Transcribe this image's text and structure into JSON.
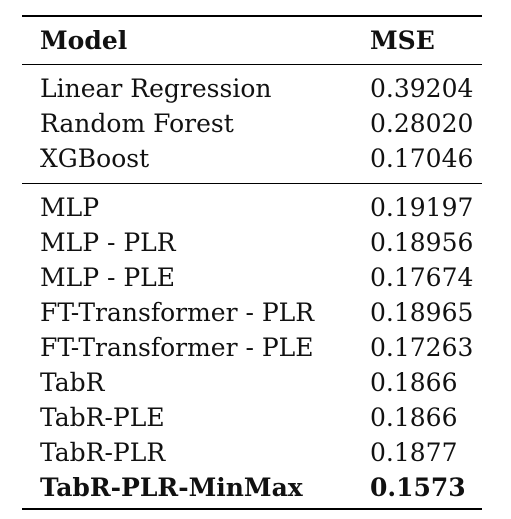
{
  "table": {
    "headers": {
      "model": "Model",
      "mse": "MSE"
    },
    "group1": [
      {
        "model": "Linear Regression",
        "mse": "0.39204"
      },
      {
        "model": "Random Forest",
        "mse": "0.28020"
      },
      {
        "model": "XGBoost",
        "mse": "0.17046"
      }
    ],
    "group2": [
      {
        "model": "MLP",
        "mse": "0.19197"
      },
      {
        "model": "MLP - PLR",
        "mse": "0.18956"
      },
      {
        "model": "MLP - PLE",
        "mse": "0.17674"
      },
      {
        "model": "FT-Transformer - PLR",
        "mse": "0.18965"
      },
      {
        "model": "FT-Transformer - PLE",
        "mse": "0.17263"
      },
      {
        "model": "TabR",
        "mse": "0.1866"
      },
      {
        "model": "TabR-PLE",
        "mse": "0.1866"
      },
      {
        "model": "TabR-PLR",
        "mse": "0.1877"
      },
      {
        "model": "TabR-PLR-MinMax",
        "mse": "0.1573",
        "bold": true
      }
    ]
  }
}
